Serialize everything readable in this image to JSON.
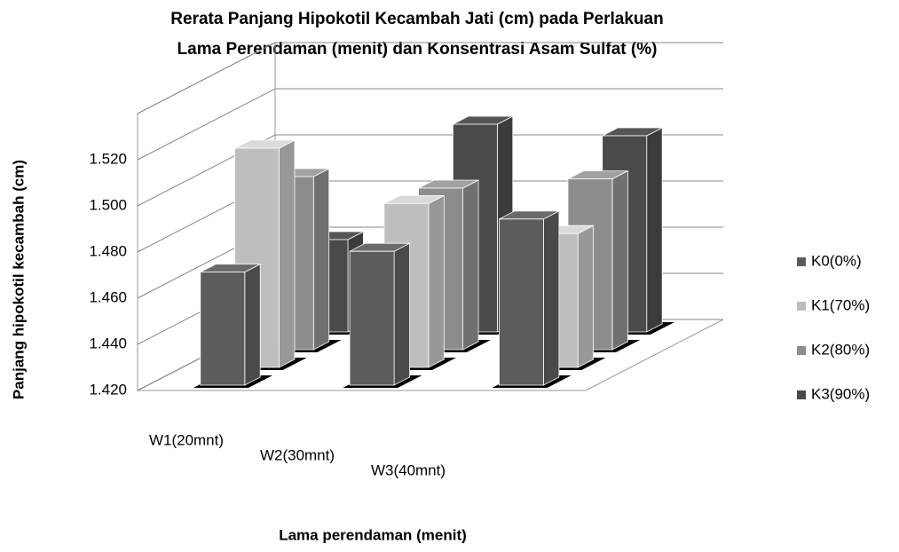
{
  "chart_data": {
    "type": "bar3d",
    "title": [
      "Rerata Panjang Hipokotil Kecambah Jati (cm) pada Perlakuan",
      "Lama Perendaman (menit) dan Konsentrasi Asam Sulfat (%)"
    ],
    "x_label": "Lama perendaman (menit)",
    "y_label": "Panjang hipokotil kecambah (cm)",
    "categories": [
      "W1(20mnt)",
      "W2(30mnt)",
      "W3(40mnt)"
    ],
    "series": [
      {
        "name": "K0(0%)",
        "color": "#5c5c5c",
        "values": [
          1.469,
          1.478,
          1.492
        ]
      },
      {
        "name": "K1(70%)",
        "color": "#bebebe",
        "values": [
          1.515,
          1.491,
          1.478
        ]
      },
      {
        "name": "K2(80%)",
        "color": "#8c8c8c",
        "values": [
          1.495,
          1.49,
          1.494
        ]
      },
      {
        "name": "K3(90%)",
        "color": "#4a4a4a",
        "values": [
          1.46,
          1.51,
          1.505
        ]
      }
    ],
    "ylim": [
      1.42,
      1.54
    ],
    "yticks": [
      {
        "value": 1.42,
        "label": "1.420"
      },
      {
        "value": 1.44,
        "label": "1.440"
      },
      {
        "value": 1.46,
        "label": "1.460"
      },
      {
        "value": 1.48,
        "label": "1.480"
      },
      {
        "value": 1.5,
        "label": "1.500"
      },
      {
        "value": 1.52,
        "label": "1.520"
      }
    ],
    "legend": "right"
  }
}
